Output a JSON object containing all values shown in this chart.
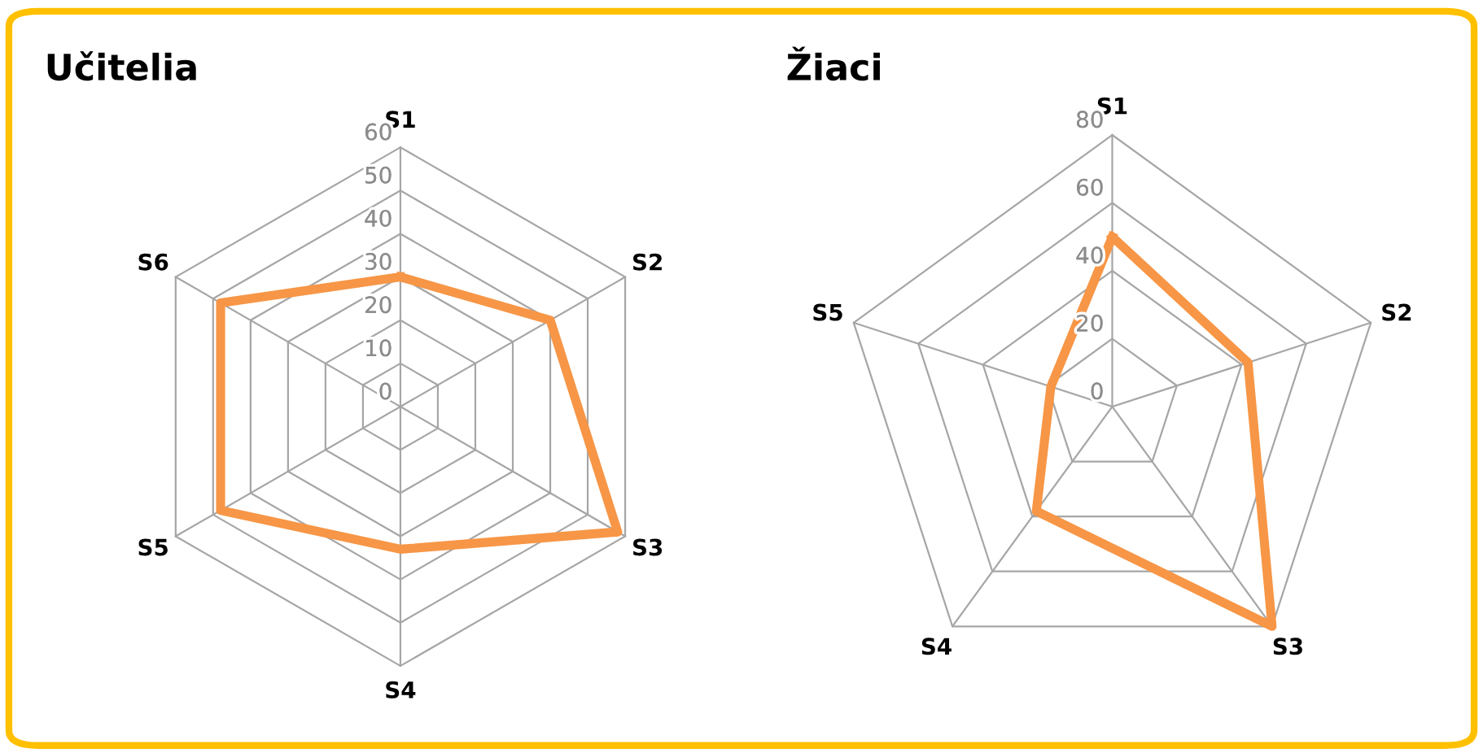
{
  "chart_data": [
    {
      "type": "radar",
      "title": "Učitelia",
      "categories": [
        "S1",
        "S2",
        "S3",
        "S4",
        "S5",
        "S6"
      ],
      "series": [
        {
          "color": "#f79646",
          "values": [
            30,
            40,
            58,
            33,
            48,
            48
          ]
        }
      ],
      "ylim": [
        0,
        60
      ],
      "yticks": [
        0,
        10,
        20,
        30,
        40,
        50,
        60
      ],
      "grid": true
    },
    {
      "type": "radar",
      "title": "Žiaci",
      "categories": [
        "S1",
        "S2",
        "S3",
        "S4",
        "S5"
      ],
      "series": [
        {
          "color": "#f79646",
          "values": [
            50,
            42,
            80,
            38,
            19
          ]
        }
      ],
      "ylim": [
        0,
        80
      ],
      "yticks": [
        0,
        20,
        40,
        60,
        80
      ],
      "grid": true
    }
  ]
}
